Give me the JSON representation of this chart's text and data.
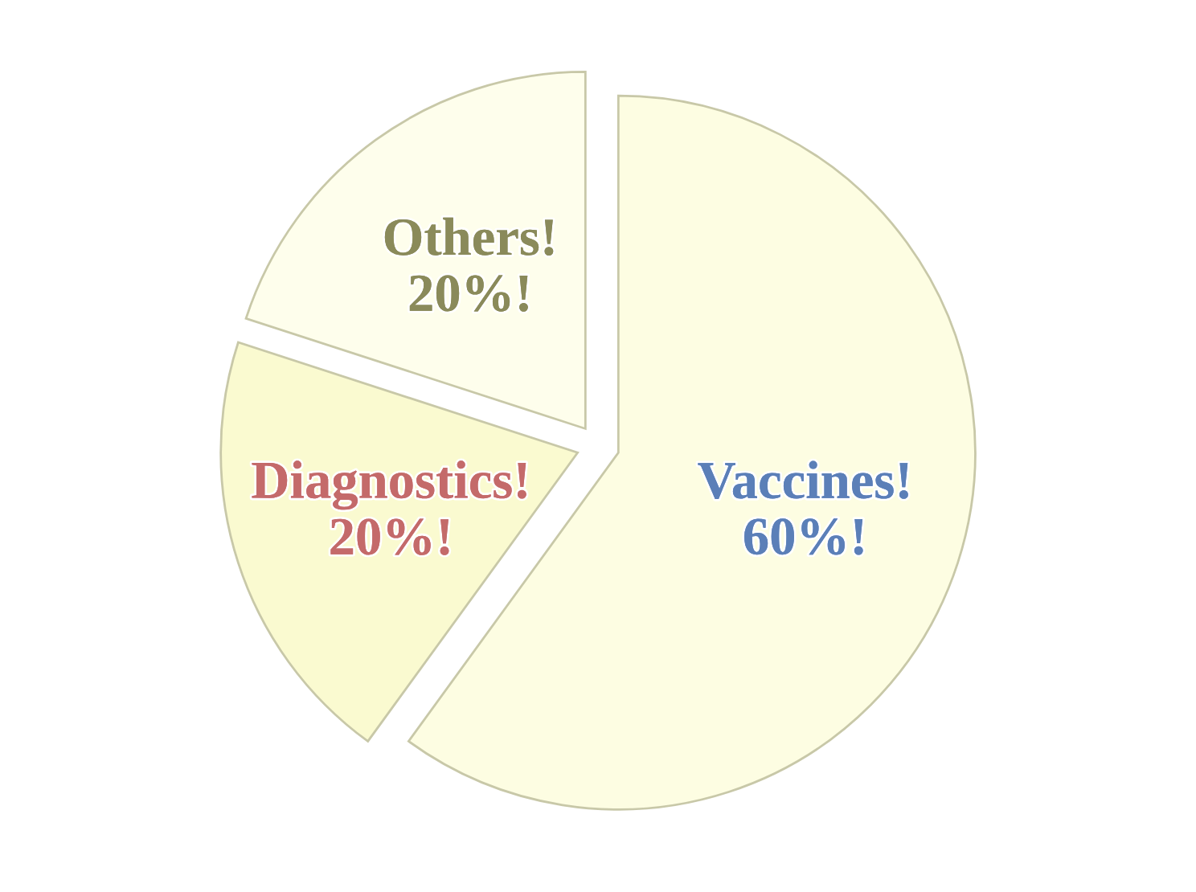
{
  "chart_data": {
    "type": "pie",
    "categories": [
      "Vaccines!",
      "Diagnostics!",
      "Others!"
    ],
    "values": [
      60,
      20,
      20
    ],
    "value_labels": [
      "60%!",
      "20%!",
      "20%!"
    ],
    "colors": [
      "#fdfde2",
      "#fafad0",
      "#fefeec"
    ],
    "legend": false
  }
}
